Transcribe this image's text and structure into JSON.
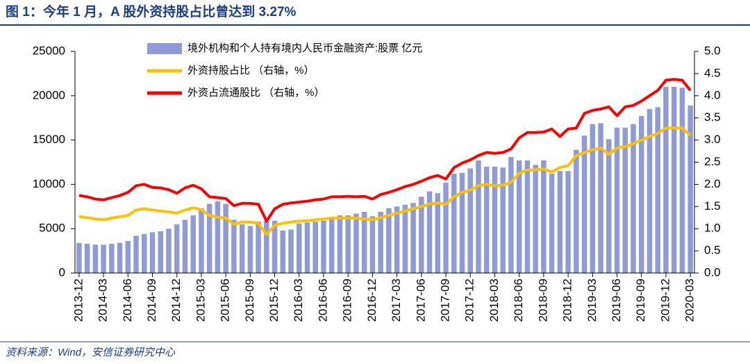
{
  "chart_data": {
    "type": "bar",
    "title": "图 1：今年 1 月，A 股外资持股占比曾达到 3.27%",
    "source": "资料来源：Wind，安信证券研究中心",
    "categories": [
      "2013-12",
      null,
      null,
      "2014-03",
      null,
      null,
      "2014-06",
      null,
      null,
      "2014-09",
      null,
      null,
      "2014-12",
      null,
      null,
      "2015-03",
      null,
      null,
      "2015-06",
      null,
      null,
      "2015-09",
      null,
      null,
      "2015-12",
      null,
      null,
      "2016-03",
      null,
      null,
      "2016-06",
      null,
      null,
      "2016-09",
      null,
      null,
      "2016-12",
      null,
      null,
      "2017-03",
      null,
      null,
      "2017-06",
      null,
      null,
      "2017-09",
      null,
      null,
      "2017-12",
      null,
      null,
      "2018-03",
      null,
      null,
      "2018-06",
      null,
      null,
      "2018-09",
      null,
      null,
      "2018-12",
      null,
      null,
      "2019-03",
      null,
      null,
      "2019-06",
      null,
      null,
      "2019-09",
      null,
      null,
      "2019-12",
      null,
      null,
      "2020-03"
    ],
    "series": [
      {
        "name": "境外机构和个人持有境内人民币金融资产:股票 亿元",
        "type": "bar",
        "color": "#8e9bd6",
        "axis": "y",
        "values": [
          3400,
          3300,
          3200,
          3200,
          3300,
          3400,
          3600,
          4200,
          4400,
          4600,
          4700,
          5000,
          5500,
          6000,
          6500,
          7300,
          7800,
          8100,
          7800,
          6000,
          5500,
          5300,
          5800,
          5900,
          5900,
          4800,
          4900,
          5600,
          5700,
          5800,
          5900,
          6300,
          6500,
          6500,
          6700,
          6900,
          6400,
          6900,
          7300,
          7500,
          7700,
          7900,
          8600,
          9200,
          9000,
          10200,
          11200,
          11300,
          11800,
          12700,
          12000,
          12000,
          11900,
          13100,
          12700,
          12700,
          12200,
          12700,
          11200,
          11500,
          11500,
          13900,
          15500,
          16800,
          16900,
          15100,
          16400,
          16400,
          16800,
          17700,
          18500,
          18700,
          21000,
          21000,
          20900,
          18900
        ]
      },
      {
        "name": "外资持股占比 （右轴，%）",
        "type": "line",
        "color": "#ffc000",
        "axis": "y2",
        "values": [
          1.27,
          1.25,
          1.22,
          1.2,
          1.24,
          1.27,
          1.3,
          1.42,
          1.45,
          1.42,
          1.4,
          1.38,
          1.35,
          1.42,
          1.47,
          1.43,
          1.3,
          1.26,
          1.24,
          1.1,
          1.15,
          1.15,
          1.12,
          0.87,
          1.08,
          1.12,
          1.15,
          1.17,
          1.18,
          1.2,
          1.22,
          1.24,
          1.24,
          1.24,
          1.24,
          1.22,
          1.2,
          1.25,
          1.3,
          1.35,
          1.4,
          1.45,
          1.5,
          1.56,
          1.58,
          1.55,
          1.72,
          1.82,
          1.87,
          1.97,
          2.0,
          1.97,
          1.98,
          2.05,
          2.25,
          2.32,
          2.33,
          2.35,
          2.28,
          2.38,
          2.42,
          2.65,
          2.72,
          2.78,
          2.82,
          2.68,
          2.82,
          2.85,
          2.92,
          3.0,
          3.08,
          3.15,
          3.27,
          3.27,
          3.27,
          3.1
        ]
      },
      {
        "name": "外资占流通股比 （右轴，%）",
        "type": "line",
        "color": "#ff0000",
        "axis": "y2",
        "values": [
          1.75,
          1.72,
          1.67,
          1.65,
          1.7,
          1.75,
          1.82,
          1.97,
          2.0,
          1.93,
          1.92,
          1.88,
          1.8,
          1.92,
          1.98,
          1.9,
          1.72,
          1.7,
          1.68,
          1.52,
          1.57,
          1.57,
          1.55,
          1.17,
          1.45,
          1.55,
          1.58,
          1.6,
          1.62,
          1.65,
          1.67,
          1.72,
          1.72,
          1.73,
          1.72,
          1.73,
          1.67,
          1.77,
          1.82,
          1.88,
          1.95,
          2.0,
          2.07,
          2.15,
          2.2,
          2.12,
          2.38,
          2.48,
          2.55,
          2.65,
          2.72,
          2.7,
          2.72,
          2.8,
          3.05,
          3.17,
          3.17,
          3.18,
          3.25,
          3.08,
          3.25,
          3.27,
          3.6,
          3.67,
          3.7,
          3.75,
          3.55,
          3.75,
          3.78,
          3.88,
          4.0,
          4.12,
          4.35,
          4.37,
          4.35,
          4.12
        ]
      }
    ],
    "ylim": [
      0,
      25000
    ],
    "yticks": [
      0,
      5000,
      10000,
      15000,
      20000,
      25000
    ],
    "y2lim": [
      0,
      5
    ],
    "y2ticks": [
      {
        "value": 0,
        "label": "0.0"
      },
      {
        "value": 0.5,
        "label": "0.5"
      },
      {
        "value": 1,
        "label": "1.0"
      },
      {
        "value": 1.5,
        "label": "1.5"
      },
      {
        "value": 2,
        "label": "2.0"
      },
      {
        "value": 2.5,
        "label": "2.5"
      },
      {
        "value": 3,
        "label": "3.0"
      },
      {
        "value": 3.5,
        "label": "3.5"
      },
      {
        "value": 4,
        "label": "4.0"
      },
      {
        "value": 4.5,
        "label": "4.5"
      },
      {
        "value": 5,
        "label": "5.0"
      }
    ],
    "grid": false,
    "legend": "top"
  }
}
